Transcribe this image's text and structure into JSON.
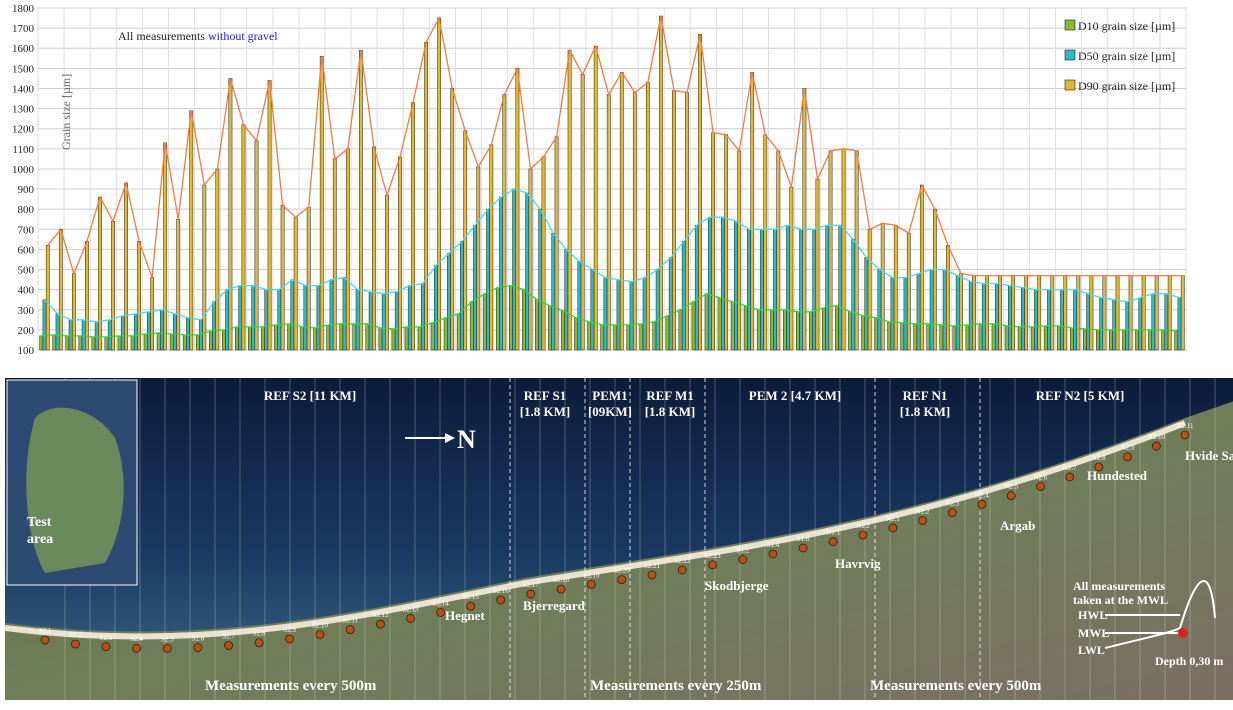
{
  "chart_data": {
    "type": "bar",
    "title": "",
    "note": {
      "prefix": "All measurements ",
      "highlight": "without gravel"
    },
    "ylabel": "Grain size  [µm]",
    "xlabel": "",
    "ylim": [
      100,
      1800
    ],
    "yticks": [
      100,
      200,
      300,
      400,
      500,
      600,
      700,
      800,
      900,
      1000,
      1100,
      1200,
      1300,
      1400,
      1500,
      1600,
      1700,
      1800
    ],
    "grid": true,
    "legend_position": "top-right",
    "series": [
      {
        "name": "D10 grain size [µm]",
        "color": "#8cb832",
        "values": [
          170,
          175,
          170,
          170,
          165,
          165,
          170,
          170,
          180,
          185,
          180,
          175,
          175,
          195,
          200,
          215,
          215,
          215,
          225,
          230,
          215,
          210,
          225,
          230,
          230,
          230,
          210,
          205,
          215,
          215,
          235,
          260,
          280,
          340,
          380,
          410,
          420,
          400,
          350,
          320,
          295,
          260,
          240,
          225,
          225,
          225,
          230,
          240,
          270,
          300,
          340,
          380,
          360,
          340,
          320,
          300,
          300,
          300,
          290,
          290,
          310,
          320,
          290,
          270,
          260,
          240,
          235,
          230,
          230,
          225,
          220,
          225,
          230,
          230,
          220,
          215,
          215,
          220,
          220,
          210,
          205,
          200,
          200,
          200,
          200,
          200,
          200,
          195
        ]
      },
      {
        "name": "D50 grain size [µm]",
        "color": "#2fb8c8",
        "values": [
          350,
          280,
          250,
          250,
          240,
          250,
          270,
          280,
          290,
          300,
          280,
          260,
          250,
          340,
          400,
          420,
          420,
          400,
          400,
          450,
          420,
          420,
          450,
          460,
          400,
          390,
          380,
          390,
          420,
          430,
          520,
          580,
          640,
          720,
          800,
          860,
          900,
          880,
          800,
          680,
          600,
          540,
          500,
          460,
          450,
          440,
          460,
          500,
          560,
          640,
          720,
          760,
          760,
          740,
          700,
          700,
          700,
          720,
          700,
          700,
          720,
          720,
          650,
          560,
          500,
          460,
          460,
          480,
          500,
          500,
          470,
          440,
          430,
          430,
          420,
          410,
          400,
          400,
          400,
          400,
          380,
          360,
          350,
          340,
          360,
          380,
          380,
          360
        ]
      },
      {
        "name": "D90 grain size [µm]",
        "color": "#e0b832",
        "values": [
          620,
          700,
          480,
          640,
          860,
          740,
          930,
          640,
          460,
          1130,
          750,
          1290,
          920,
          1000,
          1450,
          1220,
          1140,
          1440,
          820,
          760,
          810,
          1560,
          1050,
          1100,
          1590,
          1110,
          870,
          1060,
          1330,
          1630,
          1750,
          1400,
          1190,
          1010,
          1120,
          1370,
          1500,
          1000,
          1060,
          1160,
          1590,
          1470,
          1610,
          1370,
          1480,
          1380,
          1430,
          1760,
          1390,
          1380,
          1670,
          1180,
          1170,
          1090,
          1480,
          1170,
          1090,
          910,
          1400,
          950,
          1090,
          1100,
          1090,
          700,
          730,
          720,
          680,
          920,
          800,
          620,
          480,
          470,
          470,
          470,
          470,
          470,
          470,
          470,
          470,
          470,
          470,
          470,
          470,
          470,
          470,
          470,
          470,
          470
        ]
      }
    ],
    "trend_colors": {
      "D10": "#3fcf3f",
      "D50": "#4fd8e8",
      "D90": "#f07b4a"
    }
  },
  "map": {
    "sections": [
      {
        "label": "REF S2  [11 KM]"
      },
      {
        "label": "REF S1\n[1.8 KM]"
      },
      {
        "label": "PEM1\n[09KM]"
      },
      {
        "label": "REF M1\n[1.8 KM]"
      },
      {
        "label": "PEM 2  [4.7 KM]"
      },
      {
        "label": "REF N1\n[1.8 KM]"
      },
      {
        "label": "REF N2  [5 KM]"
      }
    ],
    "north_label": "N",
    "test_area_label": "Test\narea",
    "places": [
      "Hegnet",
      "Bjerregard",
      "Skodbjerge",
      "Havrvig",
      "Argab",
      "Hundested",
      "Hvide Sande"
    ],
    "measurement_labels": [
      "Measurements  every 500m",
      "Measurements  every 250m",
      "Measurements  every 500m"
    ],
    "water_note": "All measurements\ntaken at the MWL",
    "levels": [
      "HWL",
      "MWL",
      "LWL"
    ],
    "depth_label": "Depth 0,30 m",
    "station_labels": [
      "S2.1",
      "S2.2",
      "S2.3",
      "S2.4",
      "S2.5",
      "S2.6",
      "S2.7",
      "S2.8",
      "S2.9",
      "S2.10",
      "S2.11",
      "S2.12",
      "S2.13",
      "S2.14",
      "S2.15",
      "S2.16",
      "S2.17",
      "S2.18",
      "S2.19",
      "S2.20",
      "S2.21",
      "S2.22",
      "S2.23",
      "S1.2",
      "S1.4",
      "S1.6",
      "N1.1",
      "N1.2",
      "N2.1",
      "N2.2",
      "N2.3",
      "N2.4",
      "N2.5",
      "N2.6",
      "N2.7",
      "N2.8",
      "N2.9",
      "N2.10",
      "N2.11"
    ]
  }
}
